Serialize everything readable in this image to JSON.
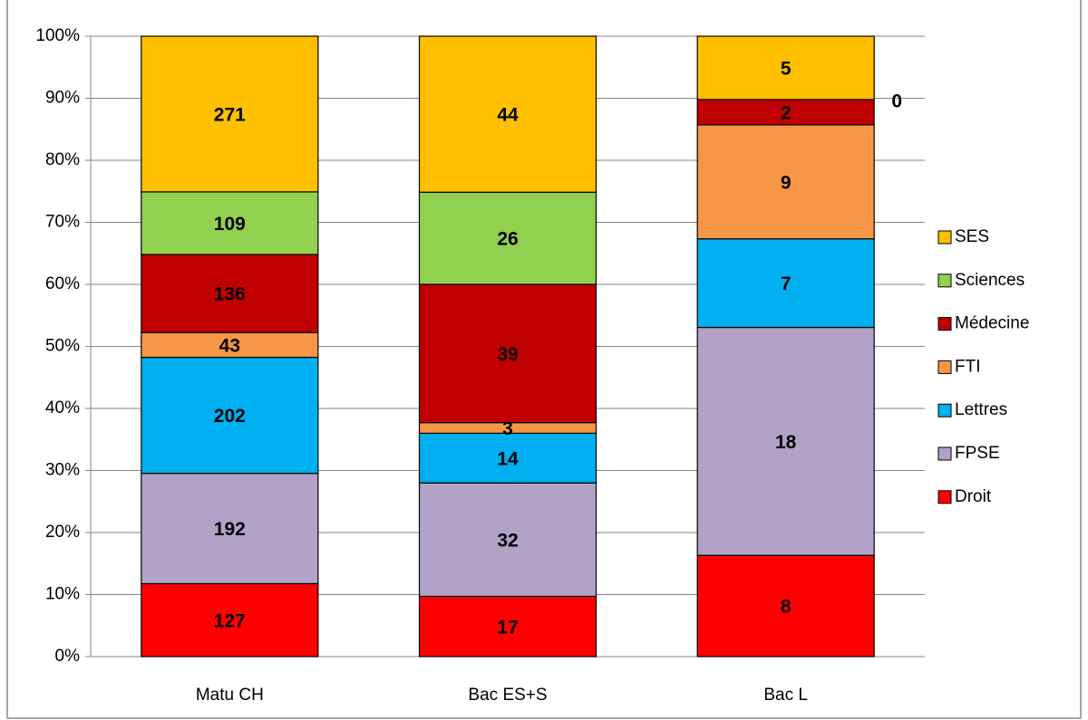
{
  "chart_data": {
    "type": "bar",
    "stacking": "percent",
    "categories": [
      "Matu CH",
      "Bac ES+S",
      "Bac L"
    ],
    "series": [
      {
        "name": "Droit",
        "color": "#FF0000",
        "values": [
          127,
          17,
          8
        ]
      },
      {
        "name": "FPSE",
        "color": "#B2A2C7",
        "values": [
          192,
          32,
          18
        ]
      },
      {
        "name": "Lettres",
        "color": "#00B0F0",
        "values": [
          202,
          14,
          7
        ]
      },
      {
        "name": "FTI",
        "color": "#F79646",
        "values": [
          43,
          3,
          9
        ]
      },
      {
        "name": "Médecine",
        "color": "#C00000",
        "values": [
          136,
          39,
          2
        ]
      },
      {
        "name": "Sciences",
        "color": "#92D050",
        "values": [
          109,
          26,
          0
        ]
      },
      {
        "name": "SES",
        "color": "#FFC000",
        "values": [
          271,
          44,
          5
        ]
      }
    ],
    "ylim": [
      0,
      100
    ],
    "yticks": [
      {
        "value": 0,
        "label": "0%"
      },
      {
        "value": 10,
        "label": "10%"
      },
      {
        "value": 20,
        "label": "20%"
      },
      {
        "value": 30,
        "label": "30%"
      },
      {
        "value": 40,
        "label": "40%"
      },
      {
        "value": 50,
        "label": "50%"
      },
      {
        "value": 60,
        "label": "60%"
      },
      {
        "value": 70,
        "label": "70%"
      },
      {
        "value": 80,
        "label": "80%"
      },
      {
        "value": 90,
        "label": "90%"
      },
      {
        "value": 100,
        "label": "100%"
      }
    ],
    "grid": true,
    "legend": "right"
  }
}
